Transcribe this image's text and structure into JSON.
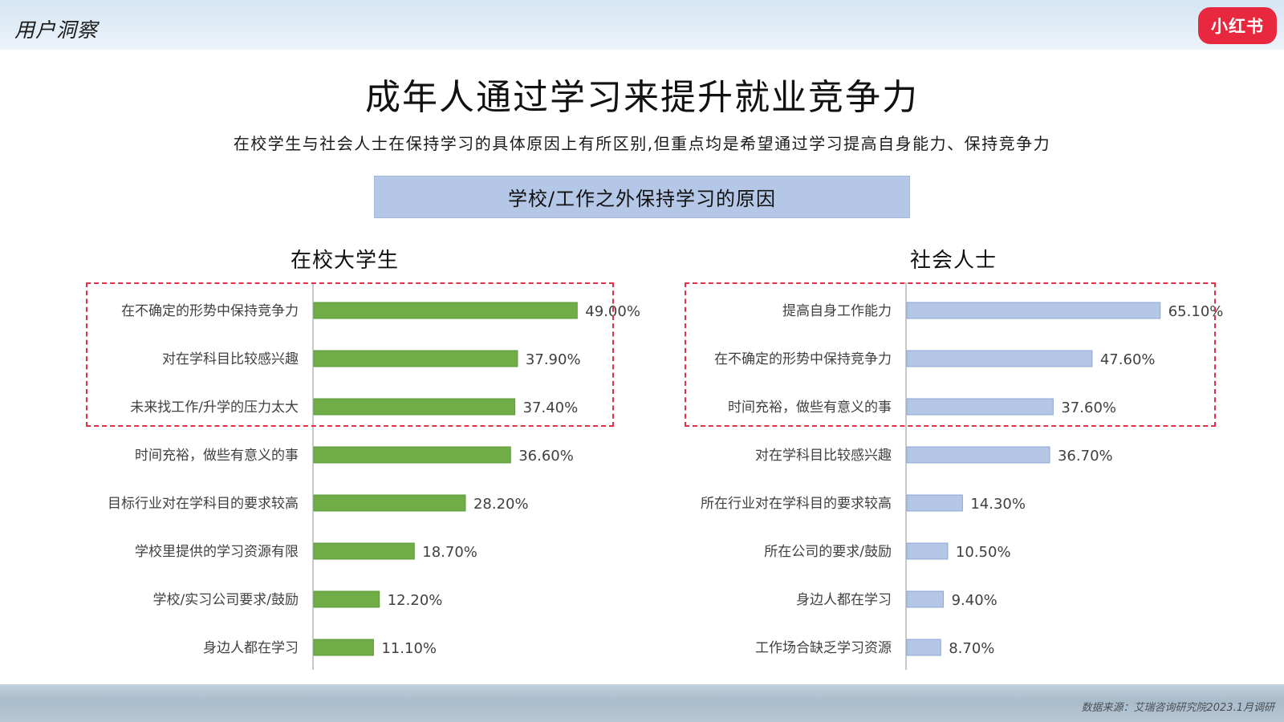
{
  "header": {
    "section_label": "用户洞察",
    "logo_text": "小红书"
  },
  "title": "成年人通过学习来提升就业竞争力",
  "subtitle": "在校学生与社会人士在保持学习的具体原因上有所区别,但重点均是希望通过学习提高自身能力、保持竞争力",
  "banner": "学校/工作之外保持学习的原因",
  "source": "数据来源：艾瑞咨询研究院2023.1月调研",
  "colors": {
    "student_bar": "#70ad47",
    "social_bar": "#b4c7e7",
    "highlight_box": "#e0304a"
  },
  "chart_data": [
    {
      "type": "bar",
      "orientation": "horizontal",
      "title": "在校大学生",
      "categories": [
        "在不确定的形势中保持竞争力",
        "对在学科目比较感兴趣",
        "未来找工作/升学的压力太大",
        "时间充裕，做些有意义的事",
        "目标行业对在学科目的要求较高",
        "学校里提供的学习资源有限",
        "学校/实习公司要求/鼓励",
        "身边人都在学习"
      ],
      "values": [
        49.0,
        37.9,
        37.4,
        36.6,
        28.2,
        18.7,
        12.2,
        11.1
      ],
      "labels": [
        "49.00%",
        "37.90%",
        "37.40%",
        "36.60%",
        "28.20%",
        "18.70%",
        "12.20%",
        "11.10%"
      ],
      "unit": "%",
      "highlighted_top": 3
    },
    {
      "type": "bar",
      "orientation": "horizontal",
      "title": "社会人士",
      "categories": [
        "提高自身工作能力",
        "在不确定的形势中保持竞争力",
        "时间充裕，做些有意义的事",
        "对在学科目比较感兴趣",
        "所在行业对在学科目的要求较高",
        "所在公司的要求/鼓励",
        "身边人都在学习",
        "工作场合缺乏学习资源"
      ],
      "values": [
        65.1,
        47.6,
        37.6,
        36.7,
        14.3,
        10.5,
        9.4,
        8.7
      ],
      "labels": [
        "65.10%",
        "47.60%",
        "37.60%",
        "36.70%",
        "14.30%",
        "10.50%",
        "9.40%",
        "8.70%"
      ],
      "unit": "%",
      "highlighted_top": 3
    }
  ]
}
